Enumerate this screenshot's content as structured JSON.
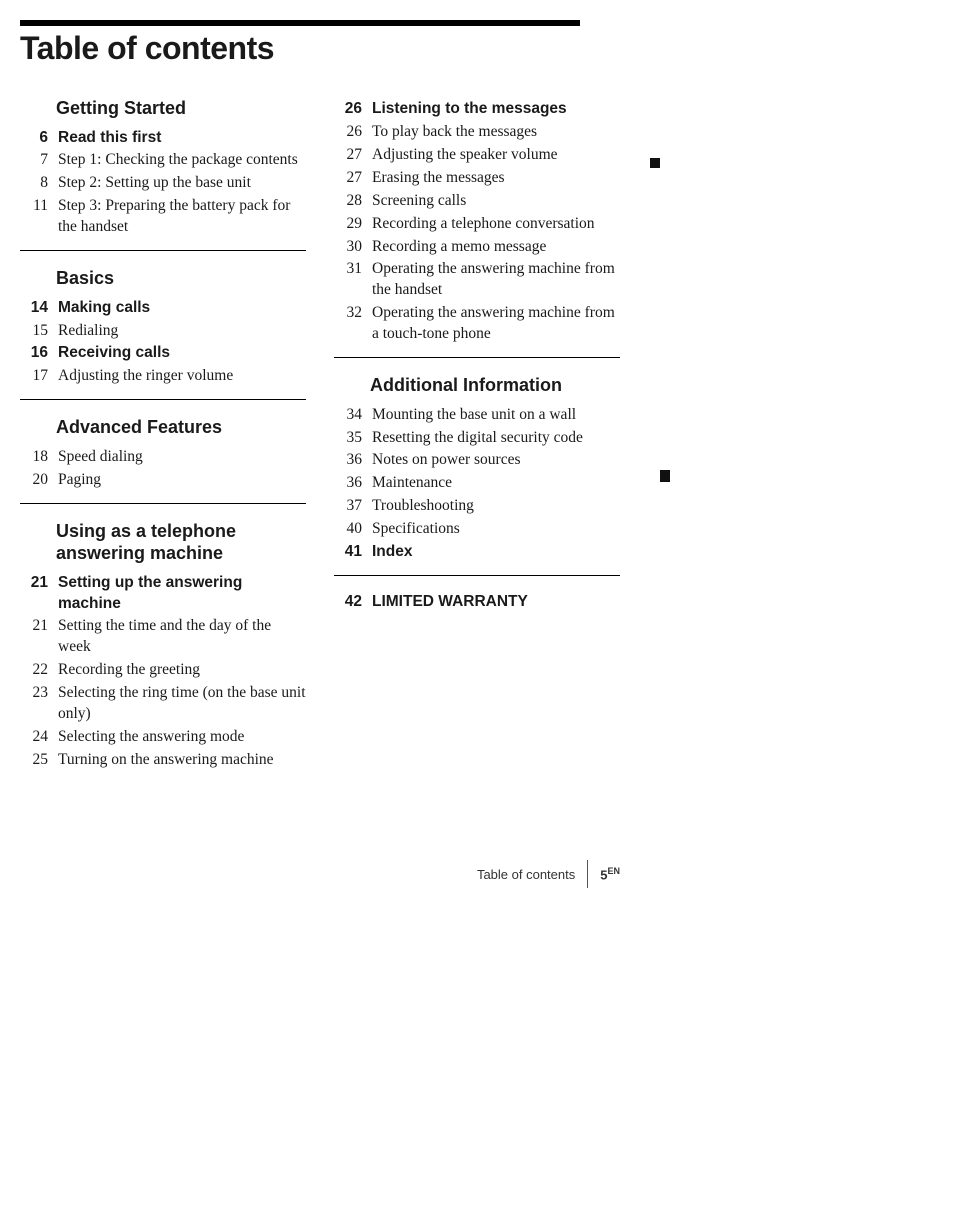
{
  "title": "Table of contents",
  "footer_label": "Table of contents",
  "footer_page": "5",
  "footer_sup": "EN",
  "columns": [
    {
      "sections": [
        {
          "heading": "Getting  Started",
          "entries": [
            {
              "page": "6",
              "text": "Read this first",
              "bold": true
            },
            {
              "page": "7",
              "text": "Step 1:  Checking the package contents",
              "bold": false
            },
            {
              "page": "8",
              "text": "Step 2:  Setting up the base unit",
              "bold": false
            },
            {
              "page": "11",
              "text": "Step 3:  Preparing the battery pack for the handset",
              "bold": false
            }
          ],
          "rule_after": true
        },
        {
          "heading": "Basics",
          "entries": [
            {
              "page": "14",
              "text": "Making calls",
              "bold": true
            },
            {
              "page": "15",
              "text": "Redialing",
              "bold": false
            },
            {
              "page": "16",
              "text": "Receiving calls",
              "bold": true
            },
            {
              "page": "17",
              "text": "Adjusting the ringer volume",
              "bold": false
            }
          ],
          "rule_after": true
        },
        {
          "heading": "Advanced Features",
          "entries": [
            {
              "page": "18",
              "text": "Speed dialing",
              "bold": false
            },
            {
              "page": "20",
              "text": "Paging",
              "bold": false
            }
          ],
          "rule_after": true
        },
        {
          "heading": "Using as a telephone answering machine",
          "entries": [
            {
              "page": "21",
              "text": "Setting up the answering machine",
              "bold": true
            },
            {
              "page": "21",
              "text": "Setting the time and the day of the week",
              "bold": false
            },
            {
              "page": "22",
              "text": "Recording the greeting",
              "bold": false
            },
            {
              "page": "23",
              "text": "Selecting the ring time (on the base unit only)",
              "bold": false
            },
            {
              "page": "24",
              "text": "Selecting the answering mode",
              "bold": false
            },
            {
              "page": "25",
              "text": "Turning on the answering machine",
              "bold": false
            }
          ],
          "rule_after": false
        }
      ]
    },
    {
      "sections": [
        {
          "heading": null,
          "entries": [
            {
              "page": "26",
              "text": "Listening to the messages",
              "bold": true
            },
            {
              "page": "26",
              "text": "To play back the messages",
              "bold": false
            },
            {
              "page": "27",
              "text": "Adjusting the speaker volume",
              "bold": false
            },
            {
              "page": "27",
              "text": "Erasing the messages",
              "bold": false
            },
            {
              "page": "28",
              "text": "Screening calls",
              "bold": false
            },
            {
              "page": "29",
              "text": "Recording a telephone conversation",
              "bold": false
            },
            {
              "page": "30",
              "text": "Recording a memo message",
              "bold": false
            },
            {
              "page": "31",
              "text": "Operating the answering machine from the handset",
              "bold": false
            },
            {
              "page": "32",
              "text": "Operating the answering machine from a touch-tone phone",
              "bold": false
            }
          ],
          "rule_after": true
        },
        {
          "heading": "Additional Information",
          "entries": [
            {
              "page": "34",
              "text": "Mounting the base unit on a wall",
              "bold": false
            },
            {
              "page": "35",
              "text": "Resetting the digital security code",
              "bold": false
            },
            {
              "page": "36",
              "text": "Notes on power sources",
              "bold": false
            },
            {
              "page": "36",
              "text": "Maintenance",
              "bold": false
            },
            {
              "page": "37",
              "text": "Troubleshooting",
              "bold": false
            },
            {
              "page": "40",
              "text": "Specifications",
              "bold": false
            },
            {
              "page": "41",
              "text": "Index",
              "bold": true
            }
          ],
          "rule_after": true
        },
        {
          "heading": null,
          "entries": [
            {
              "page": "42",
              "text": "LIMITED WARRANTY",
              "bold": true
            }
          ],
          "rule_after": false
        }
      ]
    }
  ]
}
